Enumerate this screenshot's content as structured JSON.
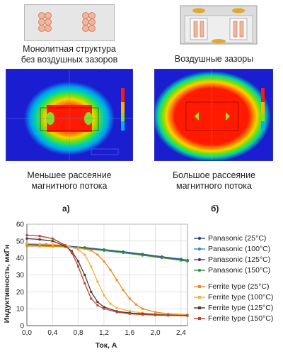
{
  "top_left": {
    "caption_line1": "Монолитная структура",
    "caption_line2": "без воздушных зазоров",
    "field_caption_line1": "Меньшее рассеяние",
    "field_caption_line2": "магнитного потока"
  },
  "top_right": {
    "caption": "Воздушные зазоры",
    "field_caption_line1": "Большое рассеяние",
    "field_caption_line2": "магнитного потока"
  },
  "panel_labels": {
    "a": "а)",
    "b": "б)"
  },
  "colors": {
    "field_bg": "#1a1ed0",
    "field_red": "#ff1a00",
    "panasonic": [
      "#2b4a7f",
      "#2a8fb5",
      "#5a2f7a",
      "#3b8f3a"
    ],
    "ferrite": [
      "#f08a20",
      "#f5b040",
      "#4a3a30",
      "#c0402a"
    ]
  },
  "chart_data": {
    "type": "line",
    "xlabel": "Ток, А",
    "ylabel": "Индуктивность, мкГн",
    "xlim": [
      0,
      2.5
    ],
    "ylim": [
      0,
      60
    ],
    "xticks": [
      "0,0",
      "0,4",
      "0,8",
      "1,2",
      "1,6",
      "2,0",
      "2,4"
    ],
    "xtick_values": [
      0,
      0.4,
      0.8,
      1.2,
      1.6,
      2.0,
      2.4
    ],
    "yticks": [
      "0",
      "10",
      "20",
      "30",
      "40",
      "50",
      "60"
    ],
    "ytick_values": [
      0,
      10,
      20,
      30,
      40,
      50,
      60
    ],
    "grid": true,
    "legend_position": "right",
    "series": [
      {
        "name": "Panasonic (25°C)",
        "group": "panasonic",
        "x": [
          0,
          0.3,
          0.6,
          0.9,
          1.2,
          1.5,
          1.8,
          2.1,
          2.4,
          2.5
        ],
        "y": [
          48.5,
          48,
          47.2,
          46.2,
          45,
          43.7,
          42.3,
          40.8,
          39.3,
          38.7
        ]
      },
      {
        "name": "Panasonic (100°C)",
        "group": "panasonic",
        "x": [
          0,
          0.3,
          0.6,
          0.9,
          1.2,
          1.5,
          1.8,
          2.1,
          2.4,
          2.5
        ],
        "y": [
          48.2,
          47.7,
          47,
          46,
          44.8,
          43.5,
          42,
          40.5,
          39,
          38.5
        ]
      },
      {
        "name": "Panasonic (125°C)",
        "group": "panasonic",
        "x": [
          0,
          0.3,
          0.6,
          0.9,
          1.2,
          1.5,
          1.8,
          2.1,
          2.4,
          2.5
        ],
        "y": [
          48,
          47.5,
          46.8,
          45.8,
          44.6,
          43.3,
          41.8,
          40.3,
          38.8,
          38.3
        ]
      },
      {
        "name": "Panasonic (150°C)",
        "group": "panasonic",
        "x": [
          0,
          0.3,
          0.6,
          0.9,
          1.2,
          1.5,
          1.8,
          2.1,
          2.4,
          2.5
        ],
        "y": [
          47.8,
          47.3,
          46.6,
          45.6,
          44.4,
          43.1,
          41.6,
          40.1,
          38.6,
          38.1
        ]
      },
      {
        "name": "Ferrite type (25°C)",
        "group": "ferrite",
        "x": [
          0,
          0.2,
          0.4,
          0.6,
          0.8,
          1.0,
          1.1,
          1.2,
          1.3,
          1.4,
          1.5,
          1.6,
          1.7,
          1.8,
          2.0,
          2.2,
          2.5
        ],
        "y": [
          47,
          47,
          46.8,
          46.5,
          46,
          44.5,
          42,
          38,
          33,
          27,
          21,
          16,
          12.5,
          10,
          8,
          7,
          6.5
        ]
      },
      {
        "name": "Ferrite type (100°C)",
        "group": "ferrite",
        "x": [
          0,
          0.2,
          0.4,
          0.6,
          0.8,
          0.9,
          1.0,
          1.1,
          1.2,
          1.3,
          1.4,
          1.6,
          1.8,
          2.0,
          2.2,
          2.5
        ],
        "y": [
          48.5,
          48.3,
          48,
          47.5,
          45,
          42,
          35,
          26,
          18,
          13,
          10.5,
          8.5,
          7.5,
          7,
          6.5,
          6.2
        ]
      },
      {
        "name": "Ferrite type (125°C)",
        "group": "ferrite",
        "x": [
          0,
          0.2,
          0.4,
          0.6,
          0.7,
          0.8,
          0.9,
          1.0,
          1.1,
          1.2,
          1.4,
          1.6,
          1.8,
          2.0,
          2.2,
          2.5
        ],
        "y": [
          51.5,
          51,
          50,
          47,
          44,
          38,
          30,
          20,
          14,
          11,
          8.5,
          7.5,
          7,
          6.5,
          6.2,
          6
        ]
      },
      {
        "name": "Ferrite type (150°C)",
        "group": "ferrite",
        "x": [
          0,
          0.2,
          0.4,
          0.6,
          0.7,
          0.8,
          0.9,
          1.0,
          1.1,
          1.2,
          1.4,
          1.6,
          1.8,
          2.0,
          2.2,
          2.5
        ],
        "y": [
          53.5,
          53,
          51.5,
          47.5,
          43,
          35,
          25,
          16,
          12,
          10,
          8,
          7,
          6.5,
          6.2,
          6,
          5.8
        ]
      }
    ]
  }
}
